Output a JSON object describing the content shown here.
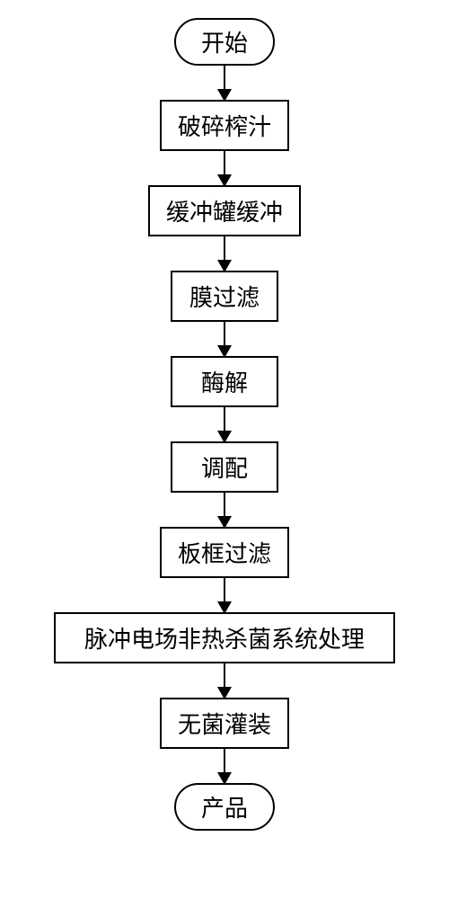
{
  "flowchart": {
    "type": "flowchart",
    "background_color": "#ffffff",
    "border_color": "#000000",
    "text_color": "#000000",
    "font_size": 26,
    "arrow_length": 38,
    "arrow_width": 2,
    "arrowhead_size": 14,
    "nodes": [
      {
        "id": "start",
        "label": "开始",
        "shape": "terminal"
      },
      {
        "id": "crush",
        "label": "破碎榨汁",
        "shape": "process"
      },
      {
        "id": "buffer",
        "label": "缓冲罐缓冲",
        "shape": "process"
      },
      {
        "id": "membrane",
        "label": "膜过滤",
        "shape": "process"
      },
      {
        "id": "enzyme",
        "label": "酶解",
        "shape": "process"
      },
      {
        "id": "blend",
        "label": "调配",
        "shape": "process"
      },
      {
        "id": "plate",
        "label": "板框过滤",
        "shape": "process"
      },
      {
        "id": "pef",
        "label": "脉冲电场非热杀菌系统处理",
        "shape": "process",
        "wide": true
      },
      {
        "id": "aseptic",
        "label": "无菌灌装",
        "shape": "process"
      },
      {
        "id": "product",
        "label": "产品",
        "shape": "terminal"
      }
    ]
  }
}
